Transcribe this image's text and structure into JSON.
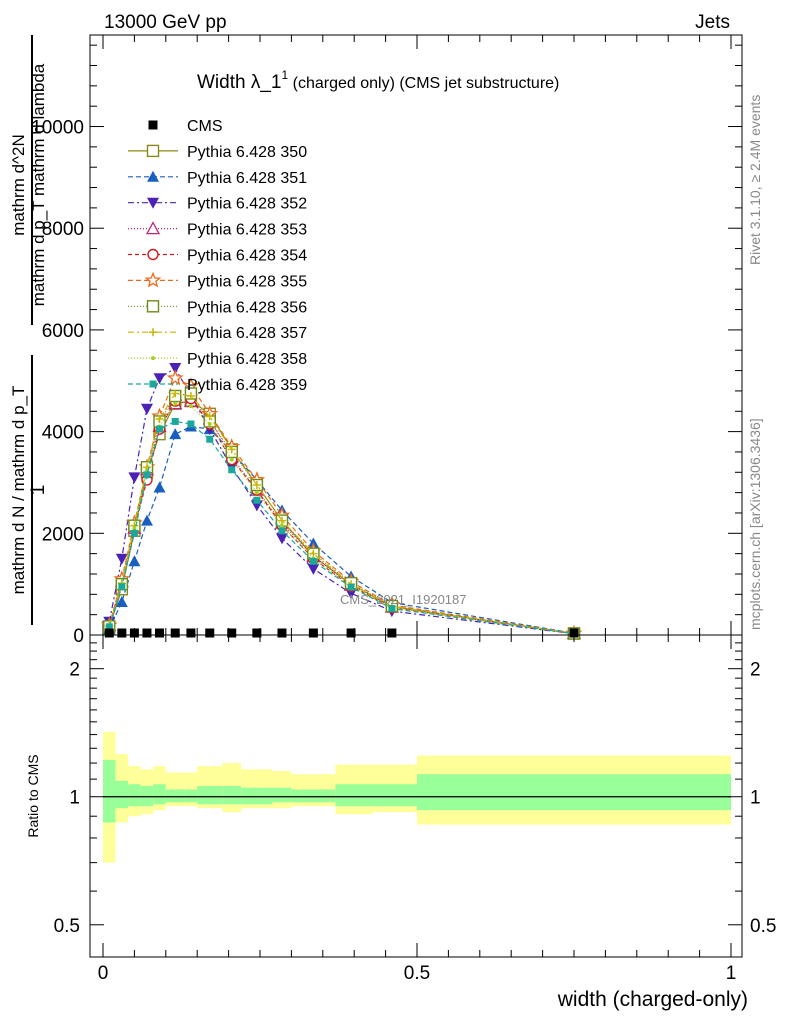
{
  "header": {
    "left": "13000 GeV pp",
    "right": "Jets"
  },
  "side_labels": {
    "rivet": "Rivet 3.1.10, ≥ 2.4M events",
    "mcplots": "mcplots.cern.ch [arXiv:1306.3436]"
  },
  "analysis_watermark": "CMS_2021_I1920187",
  "chart_data": [
    {
      "type": "line",
      "title_main": "Width λ_1",
      "title_sup": "1",
      "title_sub": " (charged only) (CMS jet substructure)",
      "ylabel_line1": "mathrm d^2N",
      "ylabel_line2": "mathrm d p_T mathrm d lambda",
      "ylabel_frac_num": "1",
      "ylabel_frac_den": "mathrm d N / mathrm d p_T",
      "xlim": [
        -0.02,
        1.02
      ],
      "ylim": [
        0,
        11800
      ],
      "y_ticks": [
        0,
        2000,
        4000,
        6000,
        8000,
        10000
      ],
      "y_tick_labels": [
        "0",
        "2000",
        "4000",
        "6000",
        "8000",
        "10000"
      ],
      "x": [
        0.01,
        0.03,
        0.05,
        0.07,
        0.09,
        0.115,
        0.14,
        0.17,
        0.205,
        0.245,
        0.285,
        0.335,
        0.395,
        0.46,
        0.75
      ],
      "data": {
        "name": "CMS",
        "values": [
          5,
          5,
          5,
          5,
          5,
          5,
          5,
          5,
          5,
          5,
          5,
          5,
          5,
          5,
          5
        ]
      },
      "series": [
        {
          "name": "Pythia 6.428 350",
          "color": "#8a8a1a",
          "marker": "square-open",
          "dash": "",
          "values": [
            150,
            900,
            2050,
            3200,
            3950,
            4550,
            4600,
            4350,
            3650,
            2950,
            2250,
            1550,
            1000,
            560,
            30
          ]
        },
        {
          "name": "Pythia 6.428 351",
          "color": "#1a5fbf",
          "marker": "triangle-up",
          "dash": "5,3",
          "values": [
            110,
            650,
            1450,
            2250,
            2900,
            3950,
            4100,
            4050,
            3600,
            3050,
            2450,
            1800,
            1150,
            640,
            35
          ]
        },
        {
          "name": "Pythia 6.428 352",
          "color": "#4b22b5",
          "marker": "triangle-down",
          "dash": "6,3,2,3",
          "values": [
            260,
            1500,
            3100,
            4450,
            5050,
            5250,
            4700,
            4050,
            3300,
            2550,
            1900,
            1300,
            820,
            470,
            25
          ]
        },
        {
          "name": "Pythia 6.428 353",
          "color": "#c0247a",
          "marker": "triangle-open",
          "dash": "1,2",
          "values": [
            190,
            1050,
            2100,
            3250,
            4100,
            4550,
            4600,
            4250,
            3500,
            2850,
            2200,
            1550,
            980,
            550,
            30
          ]
        },
        {
          "name": "Pythia 6.428 354",
          "color": "#d01c1c",
          "marker": "circle-open",
          "dash": "4,3",
          "values": [
            180,
            1000,
            2100,
            3050,
            4050,
            4600,
            4650,
            4150,
            3450,
            2850,
            2150,
            1500,
            960,
            540,
            28
          ]
        },
        {
          "name": "Pythia 6.428 355",
          "color": "#ee6a1a",
          "marker": "star-open",
          "dash": "5,3",
          "values": [
            190,
            1100,
            2200,
            3300,
            4300,
            5050,
            4900,
            4350,
            3700,
            3050,
            2350,
            1650,
            1050,
            590,
            30
          ]
        },
        {
          "name": "Pythia 6.428 356",
          "color": "#6e8a1a",
          "marker": "square-open",
          "dash": "1,2",
          "values": [
            170,
            1000,
            2150,
            3300,
            4200,
            4700,
            4750,
            4200,
            3600,
            2950,
            2250,
            1600,
            1020,
            570,
            30
          ]
        },
        {
          "name": "Pythia 6.428 357",
          "color": "#c9b400",
          "marker": "plus",
          "dash": "6,3,2,3",
          "values": [
            175,
            1020,
            2150,
            3300,
            4250,
            4750,
            4700,
            4300,
            3650,
            2950,
            2250,
            1600,
            1000,
            560,
            30
          ]
        },
        {
          "name": "Pythia 6.428 358",
          "color": "#a6d11a",
          "marker": "dot",
          "dash": "1,2",
          "values": [
            170,
            1000,
            2100,
            3250,
            4100,
            4550,
            4500,
            4150,
            3450,
            2800,
            2150,
            1500,
            960,
            540,
            28
          ]
        },
        {
          "name": "Pythia 6.428 359",
          "color": "#1aa89b",
          "marker": "square-filled",
          "dash": "5,3",
          "values": [
            160,
            950,
            2000,
            3150,
            4050,
            4200,
            4150,
            3850,
            3250,
            2650,
            2050,
            1450,
            940,
            520,
            26
          ]
        }
      ]
    },
    {
      "type": "area",
      "ylabel": "Ratio to CMS",
      "xlabel": "width (charged-only)",
      "xlim": [
        -0.02,
        1.02
      ],
      "ylim": [
        0.42,
        2.4
      ],
      "log_y": true,
      "x_ticks": [
        0,
        0.5,
        1
      ],
      "x_tick_labels": [
        "0",
        "0.5",
        "1"
      ],
      "y_ticks": [
        0.5,
        1,
        2
      ],
      "y_tick_labels": [
        "0.5",
        "1",
        "2"
      ],
      "bin_edges": [
        0,
        0.02,
        0.04,
        0.06,
        0.08,
        0.1,
        0.13,
        0.15,
        0.19,
        0.22,
        0.27,
        0.3,
        0.37,
        0.43,
        0.5,
        1.0
      ],
      "band_yellow_low": [
        0.7,
        0.87,
        0.9,
        0.91,
        0.93,
        0.95,
        0.95,
        0.94,
        0.92,
        0.94,
        0.94,
        0.95,
        0.91,
        0.92,
        0.86
      ],
      "band_yellow_high": [
        1.42,
        1.26,
        1.18,
        1.16,
        1.18,
        1.14,
        1.14,
        1.18,
        1.2,
        1.16,
        1.15,
        1.13,
        1.19,
        1.19,
        1.25
      ],
      "band_green_low": [
        0.87,
        0.94,
        0.95,
        0.95,
        0.96,
        0.97,
        0.97,
        0.96,
        0.96,
        0.96,
        0.97,
        0.97,
        0.95,
        0.95,
        0.93
      ],
      "band_green_high": [
        1.22,
        1.09,
        1.07,
        1.06,
        1.07,
        1.04,
        1.04,
        1.06,
        1.06,
        1.05,
        1.05,
        1.04,
        1.07,
        1.07,
        1.13
      ],
      "reference": 1.0,
      "colors": {
        "yellow": "#ffff99",
        "green": "#99ff99"
      }
    }
  ]
}
